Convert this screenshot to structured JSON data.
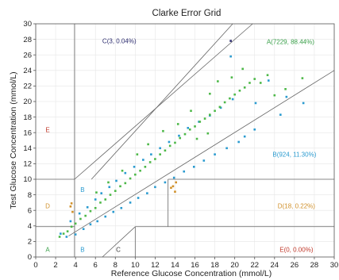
{
  "chart_data": {
    "type": "scatter",
    "title": "Clarke Error Grid",
    "xlabel": "Reference Glucose Concentration (mmol/L)",
    "ylabel": "Test Glucose Concentration (mmol/L)",
    "xlim": [
      0,
      30
    ],
    "ylim": [
      0,
      30
    ],
    "xticks": [
      "0",
      "2",
      "4",
      "6",
      "8",
      "10",
      "12",
      "14",
      "16",
      "18",
      "20",
      "22",
      "24",
      "26",
      "28",
      "30"
    ],
    "yticks": [
      "0",
      "2",
      "4",
      "6",
      "8",
      "10",
      "12",
      "14",
      "16",
      "18",
      "20",
      "22",
      "24",
      "26",
      "28",
      "30"
    ],
    "grid": true,
    "zone_lines": [
      [
        [
          0,
          3.9
        ],
        [
          3.9,
          3.9
        ]
      ],
      [
        [
          3.9,
          0
        ],
        [
          3.9,
          30
        ]
      ],
      [
        [
          0,
          10
        ],
        [
          3.9,
          10
        ]
      ],
      [
        [
          3.9,
          10
        ],
        [
          21.8,
          30
        ]
      ],
      [
        [
          3.3,
          2.7
        ],
        [
          30,
          24
        ]
      ],
      [
        [
          10,
          0
        ],
        [
          10,
          3.9
        ]
      ],
      [
        [
          10,
          3.9
        ],
        [
          30,
          3.9
        ]
      ],
      [
        [
          13.3,
          3.9
        ],
        [
          13.3,
          10
        ]
      ],
      [
        [
          13.3,
          10
        ],
        [
          30,
          10
        ]
      ],
      [
        [
          6.7,
          0
        ],
        [
          10,
          3.9
        ]
      ],
      [
        [
          5.6,
          10
        ],
        [
          19.8,
          30
        ]
      ]
    ],
    "zone_labels": [
      {
        "text": "A(7229, 88.44%)",
        "x": 25.6,
        "y": 27.6,
        "color": "#3aa04a"
      },
      {
        "text": "B(924, 11.30%)",
        "x": 26,
        "y": 13.1,
        "color": "#2a9bd0"
      },
      {
        "text": "C(3, 0.04%)",
        "x": 8.4,
        "y": 27.7,
        "color": "#2b2b6e"
      },
      {
        "text": "D(18, 0.22%)",
        "x": 26.2,
        "y": 6.5,
        "color": "#d0902a"
      },
      {
        "text": "E(0, 0.00%)",
        "x": 26.2,
        "y": 0.9,
        "color": "#c0392b"
      },
      {
        "text": "E",
        "x": 1.2,
        "y": 16.3,
        "color": "#c0392b"
      },
      {
        "text": "D",
        "x": 1.2,
        "y": 6.5,
        "color": "#d0902a"
      },
      {
        "text": "A",
        "x": 1.2,
        "y": 0.9,
        "color": "#3aa04a"
      },
      {
        "text": "B",
        "x": 4.7,
        "y": 8.6,
        "color": "#2a9bd0"
      },
      {
        "text": "B",
        "x": 4.7,
        "y": 0.9,
        "color": "#2a9bd0"
      },
      {
        "text": "C",
        "x": 8.3,
        "y": 0.9,
        "color": "#333333"
      }
    ],
    "series": [
      {
        "color": "#2a9bd0",
        "points": [
          [
            2.5,
            3.0
          ],
          [
            3.1,
            2.6
          ],
          [
            3.5,
            4.6
          ],
          [
            4.0,
            2.9
          ],
          [
            4.4,
            5.6
          ],
          [
            4.8,
            3.6
          ],
          [
            5.2,
            6.4
          ],
          [
            5.5,
            4.2
          ],
          [
            6.0,
            7.4
          ],
          [
            6.2,
            4.6
          ],
          [
            6.6,
            8.2
          ],
          [
            7.0,
            5.2
          ],
          [
            7.4,
            9.0
          ],
          [
            7.8,
            5.8
          ],
          [
            8.1,
            9.8
          ],
          [
            8.6,
            6.3
          ],
          [
            9.0,
            10.8
          ],
          [
            9.5,
            7.0
          ],
          [
            9.9,
            11.6
          ],
          [
            10.3,
            7.6
          ],
          [
            10.8,
            12.5
          ],
          [
            11.2,
            8.2
          ],
          [
            11.6,
            13.2
          ],
          [
            12.0,
            9.0
          ],
          [
            12.5,
            14.0
          ],
          [
            13.0,
            9.6
          ],
          [
            13.4,
            14.8
          ],
          [
            13.9,
            10.2
          ],
          [
            14.4,
            15.6
          ],
          [
            14.9,
            11.0
          ],
          [
            15.3,
            16.6
          ],
          [
            15.9,
            11.6
          ],
          [
            16.4,
            17.4
          ],
          [
            16.9,
            12.4
          ],
          [
            17.5,
            18.2
          ],
          [
            18.0,
            13.2
          ],
          [
            18.6,
            19.2
          ],
          [
            19.2,
            14.0
          ],
          [
            19.8,
            20.3
          ],
          [
            20.4,
            14.8
          ],
          [
            21.0,
            15.5
          ],
          [
            22.0,
            16.4
          ],
          [
            19.6,
            25.8
          ],
          [
            22.1,
            19.8
          ],
          [
            23.4,
            22.7
          ],
          [
            26.9,
            19.8
          ],
          [
            24.6,
            18.3
          ],
          [
            25.2,
            20.6
          ]
        ]
      },
      {
        "color": "#4db848",
        "points": [
          [
            2.4,
            2.6
          ],
          [
            2.8,
            3.0
          ],
          [
            3.2,
            3.3
          ],
          [
            3.6,
            3.9
          ],
          [
            4.0,
            4.3
          ],
          [
            4.5,
            4.9
          ],
          [
            5.0,
            5.3
          ],
          [
            5.5,
            5.9
          ],
          [
            6.0,
            6.3
          ],
          [
            6.5,
            7.0
          ],
          [
            7.0,
            7.4
          ],
          [
            7.5,
            8.0
          ],
          [
            8.0,
            8.5
          ],
          [
            8.5,
            9.1
          ],
          [
            9.0,
            9.5
          ],
          [
            9.5,
            10.1
          ],
          [
            10.0,
            10.6
          ],
          [
            10.5,
            11.1
          ],
          [
            11.0,
            11.6
          ],
          [
            11.5,
            12.2
          ],
          [
            12.0,
            12.6
          ],
          [
            12.5,
            13.2
          ],
          [
            13.0,
            13.7
          ],
          [
            13.5,
            14.3
          ],
          [
            14.0,
            14.7
          ],
          [
            14.5,
            15.3
          ],
          [
            15.0,
            15.8
          ],
          [
            15.5,
            16.4
          ],
          [
            16.0,
            16.8
          ],
          [
            16.5,
            17.4
          ],
          [
            17.0,
            17.8
          ],
          [
            17.5,
            18.3
          ],
          [
            18.0,
            18.8
          ],
          [
            18.5,
            19.3
          ],
          [
            19.0,
            19.9
          ],
          [
            19.5,
            20.4
          ],
          [
            20.0,
            20.9
          ],
          [
            20.5,
            21.4
          ],
          [
            21.0,
            21.8
          ],
          [
            21.5,
            22.4
          ],
          [
            22.0,
            22.9
          ],
          [
            22.6,
            22.4
          ],
          [
            23.3,
            23.4
          ],
          [
            24.0,
            20.8
          ],
          [
            25.1,
            21.6
          ],
          [
            26.8,
            23.0
          ],
          [
            17.5,
            21.0
          ],
          [
            18.3,
            22.6
          ],
          [
            19.7,
            23.1
          ],
          [
            20.8,
            24.2
          ],
          [
            12.8,
            16.2
          ],
          [
            14.3,
            17.1
          ],
          [
            15.6,
            18.8
          ],
          [
            11.3,
            14.5
          ],
          [
            10.2,
            13.2
          ],
          [
            8.7,
            11.1
          ],
          [
            7.3,
            9.6
          ],
          [
            6.1,
            8.3
          ],
          [
            16.2,
            15.2
          ],
          [
            17.3,
            15.9
          ]
        ]
      },
      {
        "color": "#d0902a",
        "points": [
          [
            3.5,
            6.5
          ],
          [
            3.6,
            6.9
          ],
          [
            3.7,
            5.8
          ],
          [
            13.8,
            9.1
          ],
          [
            14.0,
            8.4
          ],
          [
            14.1,
            9.6
          ],
          [
            13.6,
            8.9
          ]
        ]
      },
      {
        "color": "#2b2b6e",
        "points": [
          [
            19.6,
            27.8
          ]
        ]
      }
    ]
  }
}
